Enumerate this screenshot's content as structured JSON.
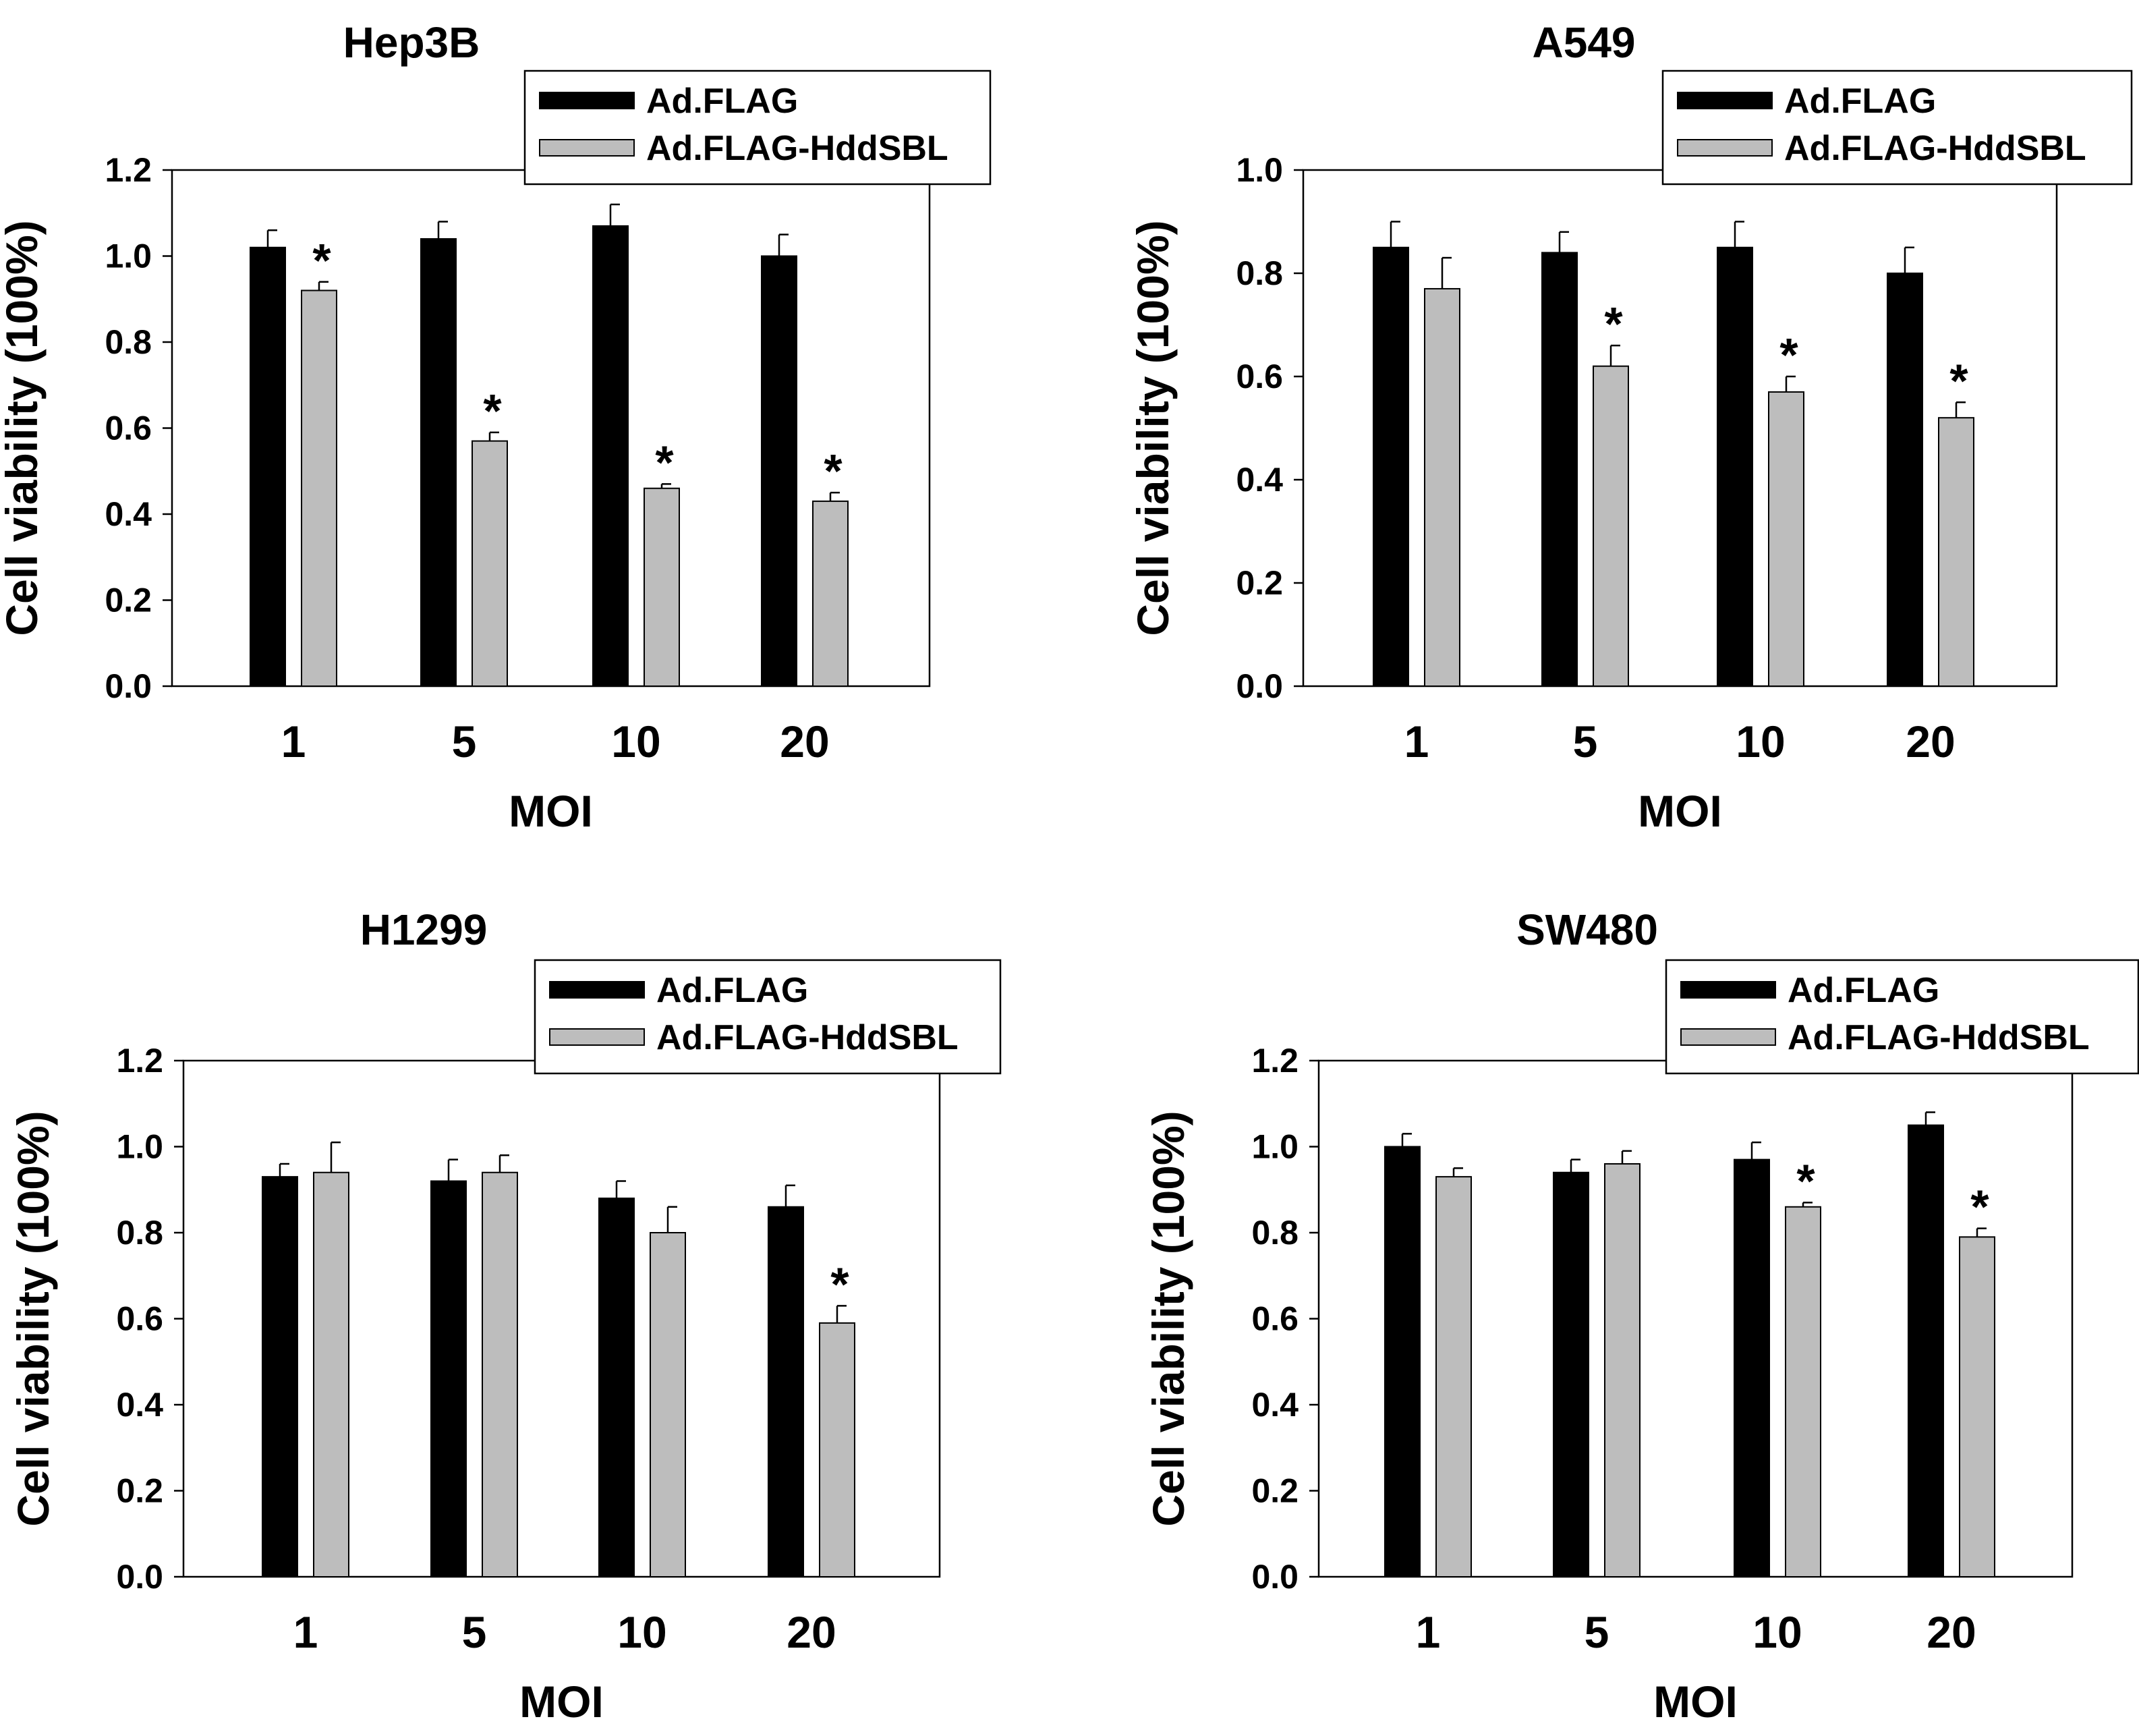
{
  "figure": {
    "x_label": "MOI",
    "y_label": "Cell viability (100%)",
    "legend": [
      "Ad.FLAG",
      "Ad.FLAG-HddSBL"
    ],
    "series_colors": [
      "#000000",
      "#bdbdbd"
    ]
  },
  "chart_data": [
    {
      "type": "bar",
      "title": "Hep3B",
      "categories": [
        "1",
        "5",
        "10",
        "20"
      ],
      "xlabel": "MOI",
      "ylabel": "Cell viability (100%)",
      "ylim": [
        0,
        1.2
      ],
      "yticks": [
        "0.0",
        "0.2",
        "0.4",
        "0.6",
        "0.8",
        "1.0",
        "1.2"
      ],
      "series": [
        {
          "name": "Ad.FLAG",
          "values": [
            1.02,
            1.04,
            1.07,
            1.0
          ],
          "errors": [
            0.04,
            0.04,
            0.05,
            0.05
          ],
          "significant": [
            false,
            false,
            false,
            false
          ]
        },
        {
          "name": "Ad.FLAG-HddSBL",
          "values": [
            0.92,
            0.57,
            0.46,
            0.43
          ],
          "errors": [
            0.02,
            0.02,
            0.01,
            0.02
          ],
          "significant": [
            true,
            true,
            true,
            true
          ]
        }
      ],
      "significance_marker": "*"
    },
    {
      "type": "bar",
      "title": "A549",
      "categories": [
        "1",
        "5",
        "10",
        "20"
      ],
      "xlabel": "MOI",
      "ylabel": "Cell viability (100%)",
      "ylim": [
        0,
        1.0
      ],
      "yticks": [
        "0.0",
        "0.2",
        "0.4",
        "0.6",
        "0.8",
        "1.0"
      ],
      "series": [
        {
          "name": "Ad.FLAG",
          "values": [
            0.85,
            0.84,
            0.85,
            0.8
          ],
          "errors": [
            0.05,
            0.04,
            0.05,
            0.05
          ],
          "significant": [
            false,
            false,
            false,
            false
          ]
        },
        {
          "name": "Ad.FLAG-HddSBL",
          "values": [
            0.77,
            0.62,
            0.57,
            0.52
          ],
          "errors": [
            0.06,
            0.04,
            0.03,
            0.03
          ],
          "significant": [
            false,
            true,
            true,
            true
          ]
        }
      ],
      "significance_marker": "*"
    },
    {
      "type": "bar",
      "title": "H1299",
      "categories": [
        "1",
        "5",
        "10",
        "20"
      ],
      "xlabel": "MOI",
      "ylabel": "Cell viability (100%)",
      "ylim": [
        0,
        1.2
      ],
      "yticks": [
        "0.0",
        "0.2",
        "0.4",
        "0.6",
        "0.8",
        "1.0",
        "1.2"
      ],
      "series": [
        {
          "name": "Ad.FLAG",
          "values": [
            0.93,
            0.92,
            0.88,
            0.86
          ],
          "errors": [
            0.03,
            0.05,
            0.04,
            0.05
          ],
          "significant": [
            false,
            false,
            false,
            false
          ]
        },
        {
          "name": "Ad.FLAG-HddSBL",
          "values": [
            0.94,
            0.94,
            0.8,
            0.59
          ],
          "errors": [
            0.07,
            0.04,
            0.06,
            0.04
          ],
          "significant": [
            false,
            false,
            false,
            true
          ]
        }
      ],
      "significance_marker": "*"
    },
    {
      "type": "bar",
      "title": "SW480",
      "categories": [
        "1",
        "5",
        "10",
        "20"
      ],
      "xlabel": "MOI",
      "ylabel": "Cell viability (100%)",
      "ylim": [
        0,
        1.2
      ],
      "yticks": [
        "0.0",
        "0.2",
        "0.4",
        "0.6",
        "0.8",
        "1.0",
        "1.2"
      ],
      "series": [
        {
          "name": "Ad.FLAG",
          "values": [
            1.0,
            0.94,
            0.97,
            1.05
          ],
          "errors": [
            0.03,
            0.03,
            0.04,
            0.03
          ],
          "significant": [
            false,
            false,
            false,
            false
          ]
        },
        {
          "name": "Ad.FLAG-HddSBL",
          "values": [
            0.93,
            0.96,
            0.86,
            0.79
          ],
          "errors": [
            0.02,
            0.03,
            0.01,
            0.02
          ],
          "significant": [
            false,
            false,
            true,
            true
          ]
        }
      ],
      "significance_marker": "*"
    }
  ]
}
